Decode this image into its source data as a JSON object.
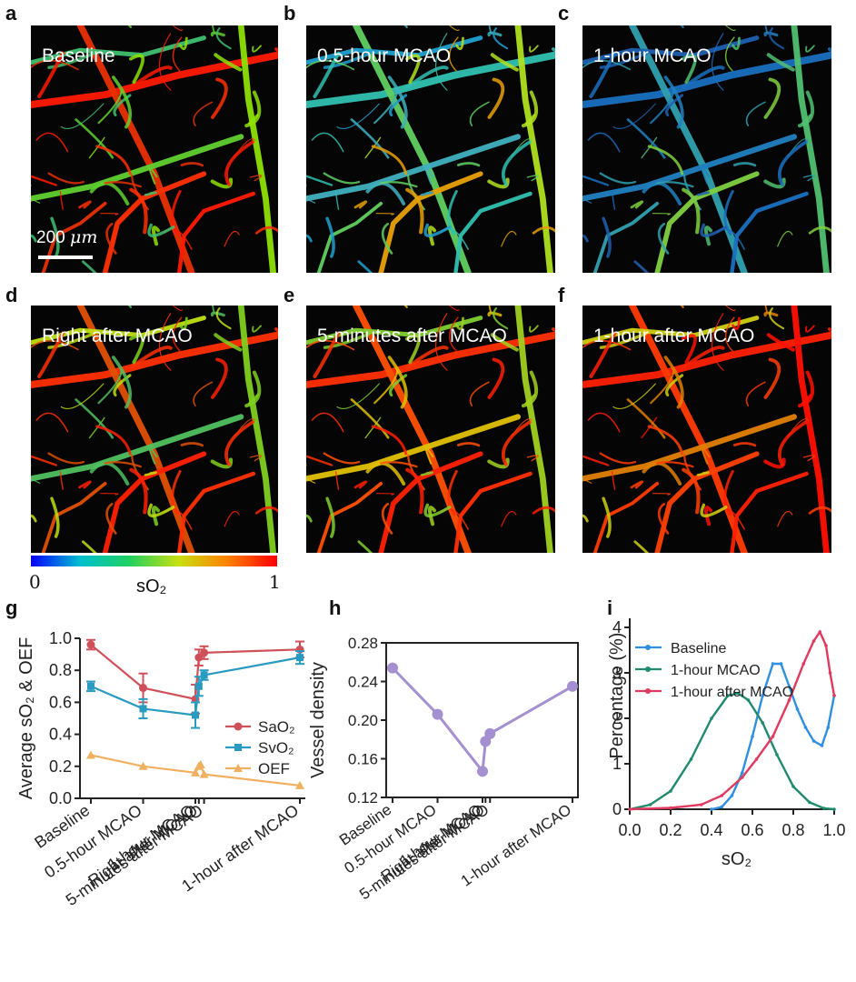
{
  "panels": [
    {
      "letter": "a",
      "label": "Baseline"
    },
    {
      "letter": "b",
      "label": "0.5-hour MCAO"
    },
    {
      "letter": "c",
      "label": "1-hour MCAO"
    },
    {
      "letter": "d",
      "label": "Right after MCAO"
    },
    {
      "letter": "e",
      "label": "5-minutes after MCAO"
    },
    {
      "letter": "f",
      "label": "1-hour after MCAO"
    }
  ],
  "scale_bar": {
    "value": "200",
    "unit": "μm"
  },
  "colorbar": {
    "min": "0",
    "max": "1",
    "label": "sO₂",
    "colors": [
      "#0000ff",
      "#00c0d0",
      "#20d060",
      "#c8e010",
      "#ff8000",
      "#ff0000"
    ]
  },
  "chart_letters": {
    "g": "g",
    "h": "h",
    "i": "i"
  },
  "chart_data": [
    {
      "type": "line",
      "title": "",
      "ylabel": "Average sO₂ & OEF",
      "xlabel": "",
      "ylim": [
        0,
        1
      ],
      "yticks": [
        "0.0",
        "0.2",
        "0.4",
        "0.6",
        "0.8",
        "1.0"
      ],
      "categories": [
        "Baseline",
        "0.5-hour MCAO",
        "1-hour MCAO",
        "Right after MCAO",
        "5-minutes after MCAO",
        "1-hour after MCAO"
      ],
      "x": [
        0,
        30,
        60,
        62,
        65,
        120
      ],
      "series": [
        {
          "name": "SaO₂",
          "color": "#d0505a",
          "marker": "circle",
          "x": [
            0,
            30,
            60,
            62,
            65,
            120
          ],
          "values": [
            0.96,
            0.69,
            0.62,
            0.88,
            0.91,
            0.93
          ],
          "errors": [
            0.03,
            0.09,
            0.09,
            0.05,
            0.04,
            0.05
          ]
        },
        {
          "name": "SvO₂",
          "color": "#2a9bc0",
          "marker": "square",
          "x": [
            0,
            30,
            60,
            62,
            65,
            120
          ],
          "values": [
            0.7,
            0.56,
            0.52,
            0.7,
            0.77,
            0.88
          ],
          "errors": [
            0.03,
            0.06,
            0.08,
            0.06,
            0.03,
            0.04
          ]
        },
        {
          "name": "OEF",
          "color": "#f0b060",
          "marker": "triangle",
          "x": [
            0,
            30,
            60,
            62,
            63,
            65,
            120
          ],
          "values": [
            0.27,
            0.2,
            0.16,
            0.2,
            0.21,
            0.15,
            0.08
          ],
          "errors": []
        }
      ]
    },
    {
      "type": "line",
      "title": "",
      "ylabel": "Vessel density",
      "xlabel": "",
      "ylim": [
        0.12,
        0.28
      ],
      "yticks": [
        "0.12",
        "0.16",
        "0.20",
        "0.24",
        "0.28"
      ],
      "categories": [
        "Baseline",
        "0.5-hour MCAO",
        "1-hour MCAO",
        "Right after MCAO",
        "5-minutes after MCAO",
        "1-hour after MCAO"
      ],
      "series": [
        {
          "name": "Vessel density",
          "color": "#a48fd0",
          "x": [
            0,
            30,
            60,
            62,
            65,
            120
          ],
          "values": [
            0.254,
            0.206,
            0.147,
            0.178,
            0.186,
            0.235
          ]
        }
      ]
    },
    {
      "type": "line",
      "title": "",
      "ylabel": "Percentage (%)",
      "xlabel": "sO₂",
      "xlim": [
        0,
        1
      ],
      "ylim": [
        0,
        4.2
      ],
      "xticks": [
        "0.0",
        "0.2",
        "0.4",
        "0.6",
        "0.8",
        "1.0"
      ],
      "yticks": [
        "0",
        "1",
        "2",
        "3",
        "4"
      ],
      "series": [
        {
          "name": "Baseline",
          "color": "#2e8fe0",
          "x": [
            0.4,
            0.45,
            0.5,
            0.55,
            0.6,
            0.65,
            0.7,
            0.74,
            0.78,
            0.82,
            0.86,
            0.9,
            0.94,
            0.97,
            1.0
          ],
          "values": [
            0.0,
            0.05,
            0.3,
            0.8,
            1.6,
            2.5,
            3.2,
            3.2,
            2.7,
            2.2,
            1.8,
            1.5,
            1.4,
            1.8,
            2.5
          ]
        },
        {
          "name": "1-hour MCAO",
          "color": "#1f8a6e",
          "x": [
            0.0,
            0.1,
            0.2,
            0.3,
            0.4,
            0.48,
            0.53,
            0.58,
            0.65,
            0.72,
            0.8,
            0.88,
            0.95,
            1.0
          ],
          "values": [
            0.0,
            0.1,
            0.4,
            1.1,
            2.0,
            2.5,
            2.55,
            2.4,
            1.9,
            1.2,
            0.5,
            0.15,
            0.02,
            0.0
          ]
        },
        {
          "name": "1-hour after MCAO",
          "color": "#e03a60",
          "x": [
            0.0,
            0.2,
            0.35,
            0.45,
            0.55,
            0.62,
            0.7,
            0.78,
            0.85,
            0.9,
            0.93,
            0.96,
            0.98,
            1.0
          ],
          "values": [
            0.0,
            0.03,
            0.1,
            0.3,
            0.7,
            1.1,
            1.6,
            2.4,
            3.2,
            3.7,
            3.9,
            3.6,
            3.0,
            2.5
          ]
        }
      ]
    }
  ]
}
